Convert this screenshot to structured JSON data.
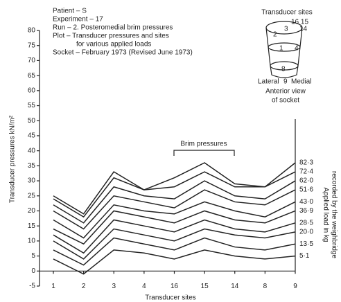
{
  "chart_data": {
    "type": "line",
    "header_lines": [
      "Patient – S",
      "Experiment – 17",
      "Run – 2. Posteromedial brim pressures",
      "Plot – Transducer pressures and sites",
      "for various applied loads",
      "Socket – February 1973 (Revised June 1973)"
    ],
    "socket_diagram": {
      "title": "Transducer sites",
      "site_labels": [
        "16 15",
        "2",
        "3",
        "14",
        "1",
        "4",
        "8",
        "9"
      ],
      "lateral": "Lateral",
      "medial": "Medial",
      "caption": [
        "Anterior view",
        "of socket"
      ]
    },
    "bracket_label": "Brim pressures",
    "x_label": "Transducer sites",
    "y_label": "Transducer pressures kN/m²",
    "y2_label": [
      "Applied load in kg",
      "recorded by the weighbridge"
    ],
    "categories": [
      "1",
      "2",
      "3",
      "4",
      "16",
      "15",
      "14",
      "8",
      "9"
    ],
    "ylim": [
      -5,
      80
    ],
    "yticks": [
      -5,
      0,
      5,
      10,
      15,
      20,
      25,
      30,
      35,
      40,
      45,
      50,
      55,
      60,
      65,
      70,
      75,
      80
    ],
    "series": [
      {
        "name": "82·3",
        "color": "#222",
        "values": [
          25,
          19,
          33,
          27,
          31,
          36,
          29,
          28,
          36
        ]
      },
      {
        "name": "72·4",
        "color": "#222",
        "values": [
          24,
          18,
          31,
          27,
          28,
          33,
          28,
          28,
          33
        ]
      },
      {
        "name": "62·0",
        "color": "#222",
        "values": [
          22,
          16,
          28,
          25,
          24,
          30,
          25,
          24,
          30
        ]
      },
      {
        "name": "51·6",
        "color": "#222",
        "values": [
          20,
          14,
          25,
          23,
          21,
          27,
          23,
          22,
          27
        ]
      },
      {
        "name": "43·0",
        "color": "#222",
        "values": [
          17,
          11,
          22,
          20,
          19,
          23,
          20,
          18,
          23
        ]
      },
      {
        "name": "36·9",
        "color": "#222",
        "values": [
          14,
          9,
          20,
          18,
          16,
          20,
          17,
          16,
          20
        ]
      },
      {
        "name": "28·5",
        "color": "#222",
        "values": [
          12,
          6,
          17,
          15,
          13,
          17,
          14,
          13,
          16
        ]
      },
      {
        "name": "20·0",
        "color": "#222",
        "values": [
          10,
          4,
          14,
          12,
          10,
          14,
          12,
          11,
          13
        ]
      },
      {
        "name": "13·5",
        "color": "#222",
        "values": [
          7,
          2,
          11,
          9,
          7,
          11,
          8,
          7,
          9
        ]
      },
      {
        "name": "5·1",
        "color": "#222",
        "values": [
          4,
          -1,
          7,
          6,
          4,
          7,
          5,
          4,
          5
        ]
      }
    ]
  }
}
